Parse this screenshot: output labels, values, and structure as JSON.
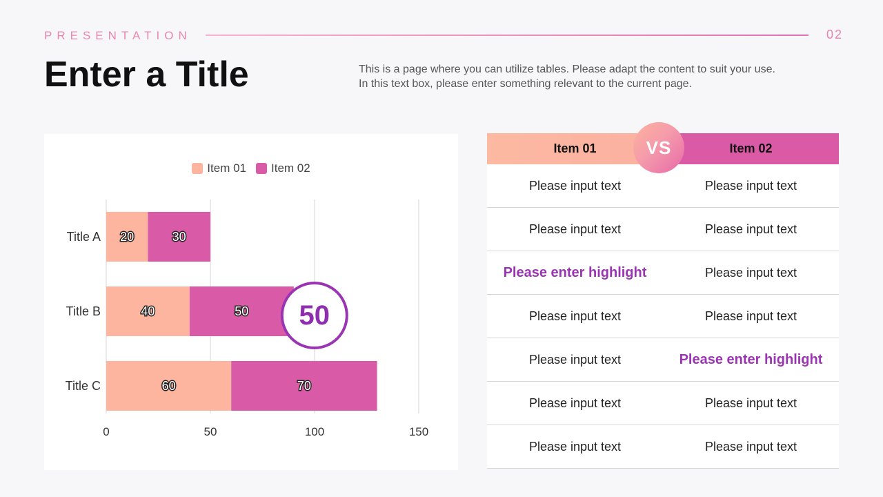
{
  "header": {
    "eyebrow": "PRESENTATION",
    "page_number": "02",
    "title": "Enter a Title",
    "description_lines": [
      "This is a page where you can utilize tables. Please adapt the content to suit your use.",
      "In this text box, please enter something relevant to the current page."
    ]
  },
  "colors": {
    "item01": "#fdb5a0",
    "item02": "#d95ba7",
    "accent": "#9b34b3",
    "rule": "#e883b3"
  },
  "chart_data": {
    "type": "bar",
    "orientation": "horizontal",
    "stacked": true,
    "categories": [
      "Title A",
      "Title B",
      "Title C"
    ],
    "series": [
      {
        "name": "Item 01",
        "values": [
          20,
          40,
          60
        ]
      },
      {
        "name": "Item 02",
        "values": [
          30,
          50,
          70
        ]
      }
    ],
    "xlim": [
      0,
      150
    ],
    "xticks": [
      0,
      50,
      100,
      150
    ],
    "grid": true,
    "legend": "top-center",
    "callout": {
      "category": "Title B",
      "value": "50"
    }
  },
  "comparison": {
    "vs_label": "VS",
    "headers": [
      "Item 01",
      "Item 02"
    ],
    "rows": [
      [
        {
          "text": "Please input text",
          "highlight": false
        },
        {
          "text": "Please input text",
          "highlight": false
        }
      ],
      [
        {
          "text": "Please input text",
          "highlight": false
        },
        {
          "text": "Please input text",
          "highlight": false
        }
      ],
      [
        {
          "text": "Please enter highlight",
          "highlight": true
        },
        {
          "text": "Please input text",
          "highlight": false
        }
      ],
      [
        {
          "text": "Please input text",
          "highlight": false
        },
        {
          "text": "Please input text",
          "highlight": false
        }
      ],
      [
        {
          "text": "Please input text",
          "highlight": false
        },
        {
          "text": "Please enter highlight",
          "highlight": true
        }
      ],
      [
        {
          "text": "Please input text",
          "highlight": false
        },
        {
          "text": "Please input text",
          "highlight": false
        }
      ],
      [
        {
          "text": "Please input text",
          "highlight": false
        },
        {
          "text": "Please input text",
          "highlight": false
        }
      ]
    ]
  }
}
